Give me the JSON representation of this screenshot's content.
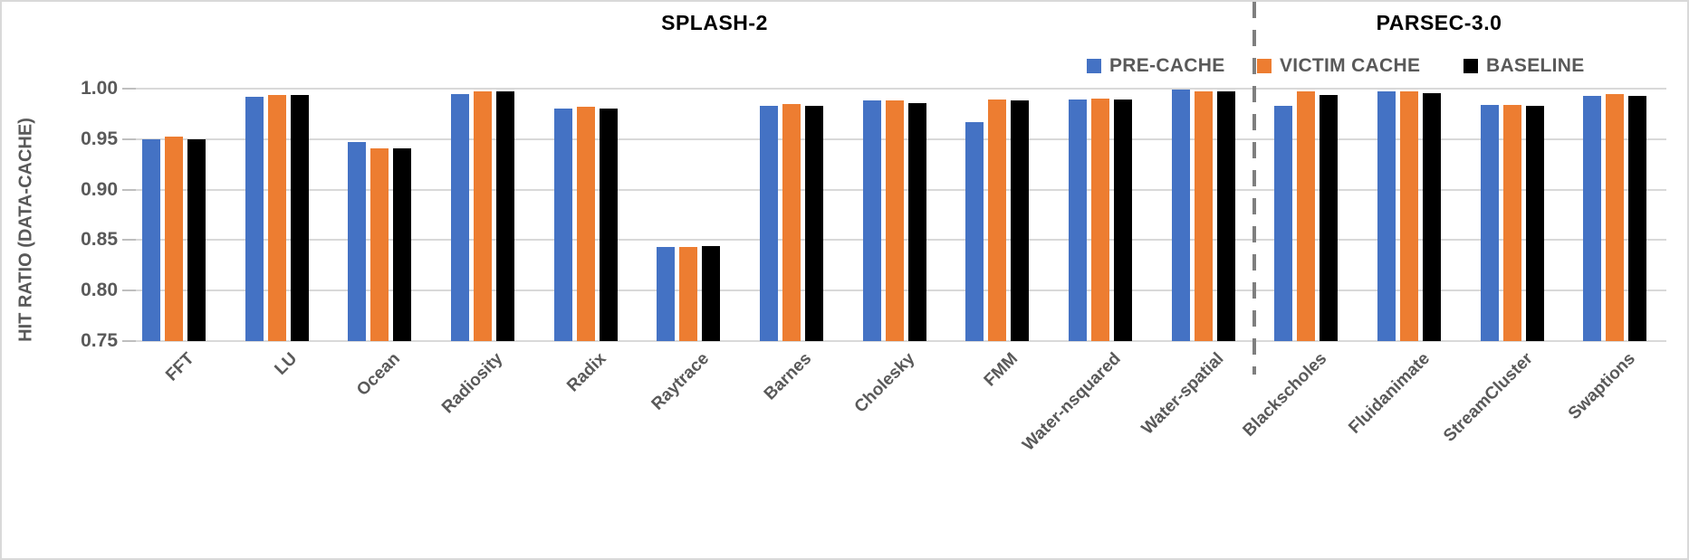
{
  "chart_data": {
    "type": "bar",
    "section_titles": {
      "left": "SPLASH-2",
      "right": "PARSEC-3.0"
    },
    "ylabel": "HIT RATIO (DATA-CACHE)",
    "ylim": [
      0.75,
      1.0
    ],
    "yticks": [
      1.0,
      0.95,
      0.9,
      0.85,
      0.8,
      0.75
    ],
    "ytick_labels": [
      "1.00",
      "0.95",
      "0.90",
      "0.85",
      "0.80",
      "0.75"
    ],
    "grid": true,
    "legend_position": "top-right-inside-plot",
    "categories": [
      "FFT",
      "LU",
      "Ocean",
      "Radiosity",
      "Radix",
      "Raytrace",
      "Barnes",
      "Cholesky",
      "FMM",
      "Water-nsquared",
      "Water-spatial",
      "Blackscholes",
      "Fluidanimate",
      "StreamCluster",
      "Swaptions"
    ],
    "left_section_categories": [
      "FFT",
      "LU",
      "Ocean",
      "Radiosity",
      "Radix",
      "Raytrace",
      "Barnes",
      "Cholesky",
      "FMM",
      "Water-nsquared",
      "Water-spatial"
    ],
    "right_section_categories": [
      "Blackscholes",
      "Fluidanimate",
      "StreamCluster",
      "Swaptions"
    ],
    "divider_after_category_index": 10,
    "series": [
      {
        "name": "PRE-CACHE",
        "color": "#4472C4",
        "values": [
          0.95,
          0.992,
          0.947,
          0.995,
          0.98,
          0.843,
          0.983,
          0.988,
          0.967,
          0.989,
          0.999,
          0.983,
          0.997,
          0.984,
          0.993
        ]
      },
      {
        "name": "VICTIM CACHE",
        "color": "#ED7D31",
        "values": [
          0.953,
          0.994,
          0.941,
          0.997,
          0.982,
          0.843,
          0.985,
          0.988,
          0.989,
          0.99,
          0.997,
          0.997,
          0.997,
          0.984,
          0.995
        ]
      },
      {
        "name": "BASELINE",
        "color": "#000000",
        "values": [
          0.95,
          0.994,
          0.941,
          0.997,
          0.98,
          0.844,
          0.983,
          0.986,
          0.988,
          0.989,
          0.997,
          0.994,
          0.996,
          0.983,
          0.993
        ]
      }
    ]
  },
  "colors": {
    "axis_text": "#595959",
    "gridline": "#d9d9d9",
    "tick_mark": "#bfbfbf",
    "divider": "#7f7f7f",
    "section_title_text": "#000000",
    "frame_border": "#d9d9d9",
    "background": "#ffffff"
  }
}
